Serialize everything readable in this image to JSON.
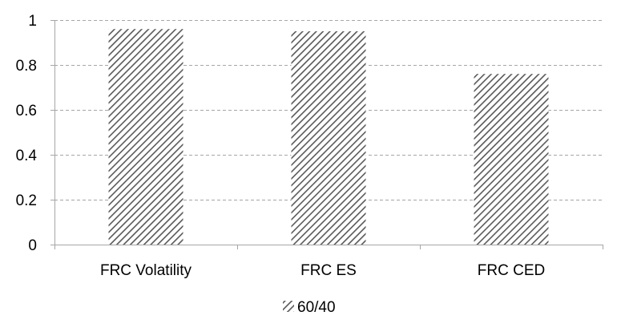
{
  "chart_data": {
    "type": "bar",
    "categories": [
      "FRC Volatility",
      "FRC ES",
      "FRC CED"
    ],
    "series": [
      {
        "name": "60/40",
        "values": [
          0.96,
          0.95,
          0.76
        ]
      }
    ],
    "ylim": [
      0,
      1
    ],
    "yticks": [
      0,
      0.2,
      0.4,
      0.6,
      0.8,
      1
    ],
    "ytick_labels": [
      "0",
      "0.2",
      "0.4",
      "0.6",
      "0.8",
      "1"
    ],
    "grid": true,
    "legend_position": "bottom",
    "colors": {
      "bar_stripe": "#595959",
      "bar_background": "#ffffff",
      "gridline": "#a6a6a6",
      "axis": "#a6a6a6"
    }
  }
}
